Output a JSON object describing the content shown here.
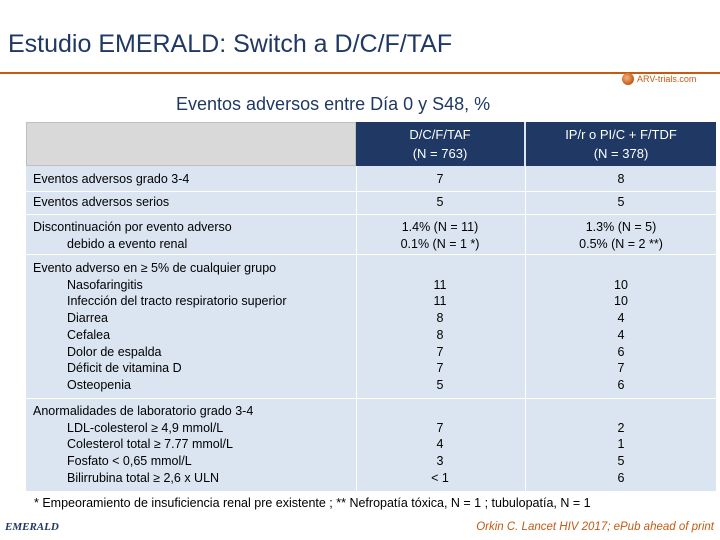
{
  "title": "Estudio EMERALD: Switch a D/C/F/TAF",
  "logo_text": "ARV-trials.com",
  "subtitle": "Eventos adversos entre Día 0 y S48, %",
  "columns": [
    {
      "name": "D/C/F/TAF",
      "n": "(N = 763)"
    },
    {
      "name": "IP/r o PI/C + F/TDF",
      "n": "(N = 378)"
    }
  ],
  "rows": [
    {
      "lines": [
        "Eventos adversos grado 3-4"
      ],
      "c1": [
        "7"
      ],
      "c2": [
        "8"
      ]
    },
    {
      "lines": [
        "Eventos adversos serios"
      ],
      "c1": [
        "5"
      ],
      "c2": [
        "5"
      ]
    },
    {
      "lines": [
        "Discontinuación por evento adverso",
        "debido a evento renal"
      ],
      "c1": [
        "1.4% (N = 11)",
        "0.1% (N = 1 *)"
      ],
      "c2": [
        "1.3% (N = 5)",
        "0.5% (N = 2 **)"
      ]
    },
    {
      "lines": [
        "Evento adverso en ≥ 5% de cualquier grupo",
        "Nasofaringitis",
        "Infección del tracto respiratorio superior",
        "Diarrea",
        "Cefalea",
        "Dolor de espalda",
        "Déficit de vitamina D",
        "Osteopenia"
      ],
      "c1": [
        "",
        "11",
        "11",
        "8",
        "8",
        "7",
        "7",
        "5"
      ],
      "c2": [
        "",
        "10",
        "10",
        "4",
        "4",
        "6",
        "7",
        "6"
      ]
    },
    {
      "lines": [
        "Anormalidades de laboratorio grado 3-4",
        "LDL-colesterol ≥ 4,9 mmol/L",
        "Colesterol total ≥ 7.77 mmol/L",
        "Fosfato < 0,65 mmol/L",
        "Bilirrubina total ≥ 2,6 x ULN"
      ],
      "c1": [
        "",
        "7",
        "4",
        "3",
        "< 1"
      ],
      "c2": [
        "",
        "2",
        "1",
        "5",
        "6"
      ]
    }
  ],
  "footnote": "* Empeoramiento de insuficiencia renal pre existente ; ** Nefropatía tóxica, N = 1 ; tubulopatía, N = 1",
  "study_tag": "EMERALD",
  "reference": "Orkin C. Lancet HIV 2017; ePub ahead of print",
  "colors": {
    "accent": "#c55a11",
    "header": "#1f3864",
    "cell": "#dbe5f1"
  }
}
